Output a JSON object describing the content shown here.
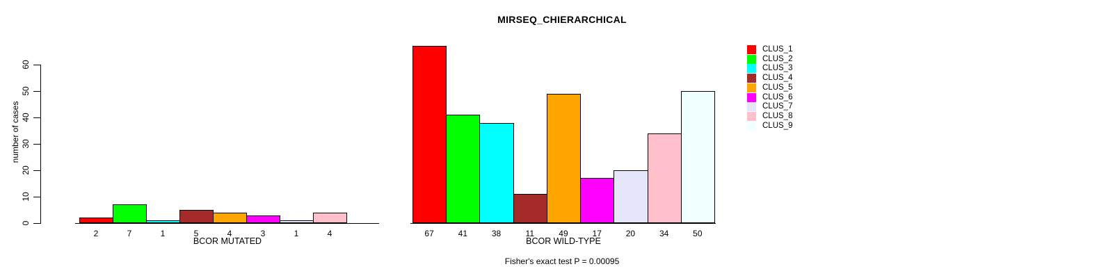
{
  "title": "MIRSEQ_CHIERARCHICAL",
  "subtitle": "Fisher's exact test P = 0.00095",
  "ylabel": "number of cases",
  "palette": [
    "#FF0000",
    "#00FF00",
    "#00FFFF",
    "#A52A2A",
    "#FFA500",
    "#FF00FF",
    "#E6E6FA",
    "#FFC0CB",
    "#F0FFFF"
  ],
  "legend": {
    "position": "right-outside-top",
    "entries": [
      {
        "label": "CLUS_1",
        "color": "#FF0000"
      },
      {
        "label": "CLUS_2",
        "color": "#00FF00"
      },
      {
        "label": "CLUS_3",
        "color": "#00FFFF"
      },
      {
        "label": "CLUS_4",
        "color": "#A52A2A"
      },
      {
        "label": "CLUS_5",
        "color": "#FFA500"
      },
      {
        "label": "CLUS_6",
        "color": "#FF00FF"
      },
      {
        "label": "CLUS_7",
        "color": "#E6E6FA"
      },
      {
        "label": "CLUS_8",
        "color": "#FFC0CB"
      },
      {
        "label": "CLUS_9",
        "color": "#F0FFFF"
      }
    ]
  },
  "chart_data": [
    {
      "type": "bar",
      "panel": "left",
      "xlabel": "BCOR MUTATED",
      "ylabel": "number of cases",
      "series_names": [
        "CLUS_1",
        "CLUS_2",
        "CLUS_3",
        "CLUS_4",
        "CLUS_5",
        "CLUS_6",
        "CLUS_7",
        "CLUS_8",
        "CLUS_9"
      ],
      "categories": [
        "2",
        "7",
        "1",
        "5",
        "4",
        "3",
        "1",
        "4",
        ""
      ],
      "values": [
        2,
        7,
        1,
        5,
        4,
        3,
        1,
        4,
        0
      ],
      "series_colors": [
        "#FF0000",
        "#00FF00",
        "#00FFFF",
        "#A52A2A",
        "#FFA500",
        "#FF00FF",
        "#E6E6FA",
        "#FFC0CB",
        "#F0FFFF"
      ],
      "ylim": [
        0,
        60
      ],
      "yticks": [
        0,
        10,
        20,
        30,
        40,
        50,
        60
      ],
      "grid": false
    },
    {
      "type": "bar",
      "panel": "right",
      "xlabel": "BCOR WILD-TYPE",
      "ylabel": "",
      "series_names": [
        "CLUS_1",
        "CLUS_2",
        "CLUS_3",
        "CLUS_4",
        "CLUS_5",
        "CLUS_6",
        "CLUS_7",
        "CLUS_8",
        "CLUS_9"
      ],
      "categories": [
        "67",
        "41",
        "38",
        "11",
        "49",
        "17",
        "20",
        "34",
        "50"
      ],
      "values": [
        67,
        41,
        38,
        11,
        49,
        17,
        20,
        34,
        50
      ],
      "series_colors": [
        "#FF0000",
        "#00FF00",
        "#00FFFF",
        "#A52A2A",
        "#FFA500",
        "#FF00FF",
        "#E6E6FA",
        "#FFC0CB",
        "#F0FFFF"
      ],
      "ylim": [
        0,
        60
      ],
      "yticks": [
        0,
        10,
        20,
        30,
        40,
        50,
        60
      ],
      "grid": false
    }
  ]
}
